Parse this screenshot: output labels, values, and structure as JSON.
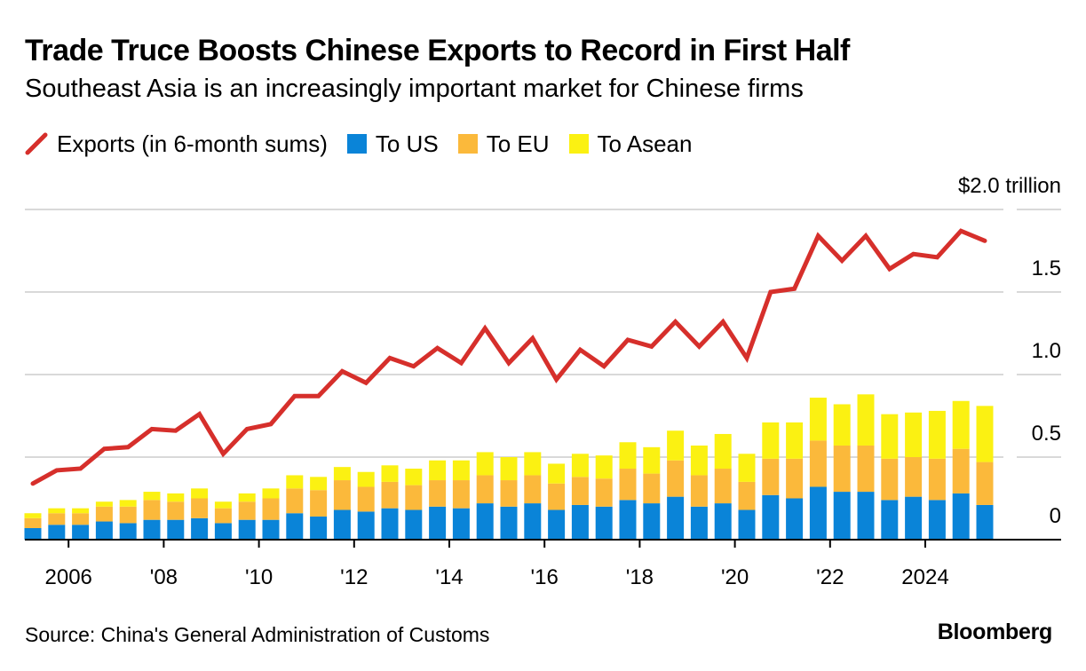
{
  "header": {
    "title": "Trade Truce Boosts Chinese Exports to Record in First Half",
    "subtitle": "Southeast Asia is an increasingly important market for Chinese firms"
  },
  "legend": {
    "exports": "Exports (in 6-month sums)",
    "us": "To US",
    "eu": "To EU",
    "asean": "To Asean"
  },
  "footer": {
    "source": "Source: China's General Administration of Customs",
    "brand": "Bloomberg"
  },
  "colors": {
    "exports": "#d62f2b",
    "us": "#0a84d8",
    "eu": "#fbb93b",
    "asean": "#fbf112",
    "grid": "#d9d9d9",
    "axis": "#000000"
  },
  "chart_data": {
    "type": "bar",
    "x": [
      "1H 2005",
      "2H 2005",
      "1H 2006",
      "2H 2006",
      "1H 2007",
      "2H 2007",
      "1H 2008",
      "2H 2008",
      "1H 2009",
      "2H 2009",
      "1H 2010",
      "2H 2010",
      "1H 2011",
      "2H 2011",
      "1H 2012",
      "2H 2012",
      "1H 2013",
      "2H 2013",
      "1H 2014",
      "2H 2014",
      "1H 2015",
      "2H 2015",
      "1H 2016",
      "2H 2016",
      "1H 2017",
      "2H 2017",
      "1H 2018",
      "2H 2018",
      "1H 2019",
      "2H 2019",
      "1H 2020",
      "2H 2020",
      "1H 2021",
      "2H 2021",
      "1H 2022",
      "2H 2022",
      "1H 2023",
      "2H 2023",
      "1H 2024",
      "2H 2024",
      "1H 2025"
    ],
    "x_tick_labels": [
      "2006",
      "'08",
      "'10",
      "'12",
      "'14",
      "'16",
      "'18",
      "'20",
      "'22",
      "2024"
    ],
    "y_tick_labels": [
      "$2.0 trillion",
      "1.5",
      "1.0",
      "0.5",
      "0"
    ],
    "ylim": [
      0,
      2.0
    ],
    "ylabel": "",
    "xlabel": "",
    "grid": true,
    "legend_position": "top-left",
    "series": [
      {
        "name": "To US",
        "type": "bar",
        "values": [
          0.07,
          0.09,
          0.09,
          0.11,
          0.1,
          0.12,
          0.12,
          0.13,
          0.1,
          0.12,
          0.12,
          0.16,
          0.14,
          0.18,
          0.17,
          0.19,
          0.18,
          0.2,
          0.19,
          0.22,
          0.2,
          0.22,
          0.18,
          0.21,
          0.2,
          0.24,
          0.22,
          0.26,
          0.2,
          0.22,
          0.18,
          0.27,
          0.25,
          0.32,
          0.29,
          0.29,
          0.24,
          0.26,
          0.24,
          0.28,
          0.21
        ]
      },
      {
        "name": "To EU",
        "type": "bar",
        "values": [
          0.06,
          0.07,
          0.07,
          0.09,
          0.1,
          0.12,
          0.11,
          0.12,
          0.09,
          0.11,
          0.13,
          0.15,
          0.16,
          0.18,
          0.15,
          0.16,
          0.15,
          0.16,
          0.17,
          0.17,
          0.16,
          0.17,
          0.16,
          0.17,
          0.17,
          0.19,
          0.18,
          0.22,
          0.19,
          0.21,
          0.17,
          0.22,
          0.24,
          0.28,
          0.28,
          0.28,
          0.25,
          0.24,
          0.25,
          0.27,
          0.26
        ]
      },
      {
        "name": "To Asean",
        "type": "bar",
        "values": [
          0.03,
          0.03,
          0.03,
          0.03,
          0.04,
          0.05,
          0.05,
          0.06,
          0.04,
          0.05,
          0.06,
          0.08,
          0.08,
          0.08,
          0.09,
          0.1,
          0.1,
          0.12,
          0.12,
          0.14,
          0.14,
          0.14,
          0.12,
          0.14,
          0.14,
          0.16,
          0.16,
          0.18,
          0.18,
          0.21,
          0.17,
          0.22,
          0.22,
          0.26,
          0.25,
          0.31,
          0.27,
          0.27,
          0.29,
          0.29,
          0.34
        ]
      },
      {
        "name": "Exports (in 6-month sums)",
        "type": "line",
        "values": [
          0.34,
          0.42,
          0.43,
          0.55,
          0.56,
          0.67,
          0.66,
          0.76,
          0.52,
          0.67,
          0.7,
          0.87,
          0.87,
          1.02,
          0.95,
          1.1,
          1.05,
          1.16,
          1.07,
          1.28,
          1.07,
          1.22,
          0.97,
          1.15,
          1.05,
          1.21,
          1.17,
          1.32,
          1.17,
          1.32,
          1.1,
          1.5,
          1.52,
          1.84,
          1.69,
          1.84,
          1.64,
          1.73,
          1.71,
          1.87,
          1.81
        ]
      }
    ]
  }
}
